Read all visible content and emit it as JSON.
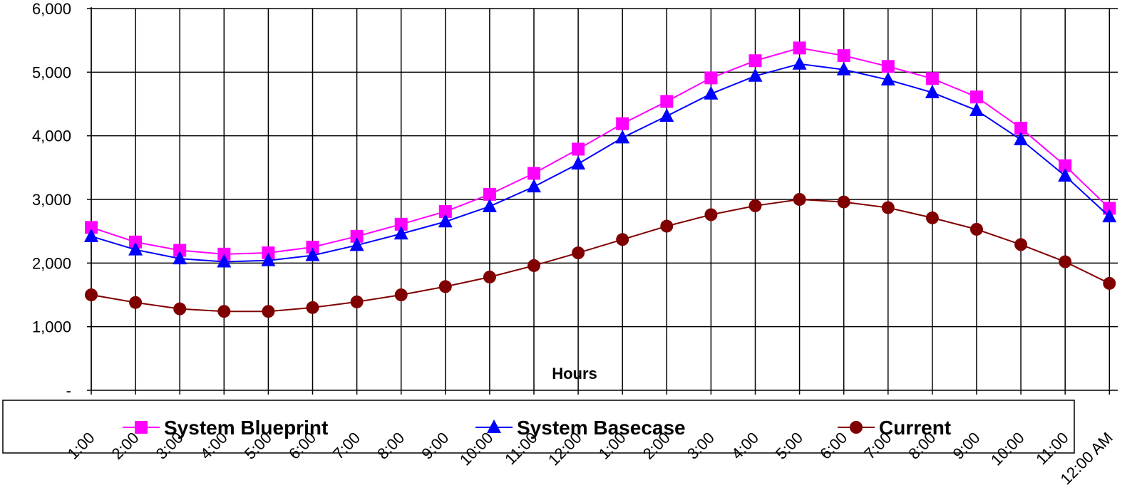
{
  "chart_data": {
    "type": "line",
    "title": "",
    "xlabel": "Hours",
    "ylabel": "",
    "ylim": [
      0,
      6000
    ],
    "y_ticks": [
      {
        "value": 0,
        "label": "-"
      },
      {
        "value": 1000,
        "label": "1,000"
      },
      {
        "value": 2000,
        "label": "2,000"
      },
      {
        "value": 3000,
        "label": "3,000"
      },
      {
        "value": 4000,
        "label": "4,000"
      },
      {
        "value": 5000,
        "label": "5,000"
      },
      {
        "value": 6000,
        "label": "6,000"
      }
    ],
    "categories": [
      "1:00",
      "2:00",
      "3:00",
      "4:00",
      "5:00",
      "6:00",
      "7:00",
      "8:00",
      "9:00",
      "10:00",
      "11:00",
      "12:00",
      "1:00",
      "2:00",
      "3:00",
      "4:00",
      "5:00",
      "6:00",
      "7:00",
      "8:00",
      "9:00",
      "10:00",
      "11:00",
      "12:00 AM"
    ],
    "grid": true,
    "legend_position": "bottom",
    "series": [
      {
        "name": "System Blueprint",
        "color": "#ff00ff",
        "marker": "square",
        "values": [
          2560,
          2330,
          2200,
          2140,
          2160,
          2250,
          2420,
          2610,
          2810,
          3080,
          3410,
          3790,
          4190,
          4540,
          4910,
          5180,
          5380,
          5260,
          5090,
          4900,
          4610,
          4120,
          3530,
          2860
        ]
      },
      {
        "name": "System Basecase",
        "color": "#0000ff",
        "marker": "triangle",
        "values": [
          2420,
          2210,
          2070,
          2020,
          2040,
          2120,
          2280,
          2460,
          2650,
          2890,
          3200,
          3560,
          3970,
          4310,
          4660,
          4940,
          5130,
          5040,
          4880,
          4680,
          4400,
          3940,
          3370,
          2730
        ]
      },
      {
        "name": "Current",
        "color": "#800000",
        "marker": "circle",
        "values": [
          1500,
          1380,
          1280,
          1240,
          1240,
          1300,
          1390,
          1500,
          1630,
          1780,
          1960,
          2160,
          2370,
          2580,
          2760,
          2900,
          3000,
          2960,
          2870,
          2710,
          2530,
          2290,
          2020,
          1680
        ]
      }
    ]
  }
}
